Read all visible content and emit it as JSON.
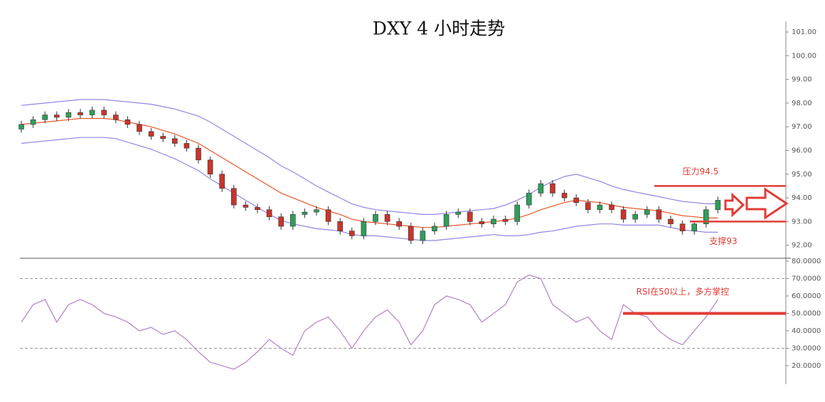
{
  "chart_data": [
    {
      "type": "candlestick",
      "title": "DXY 4 小时走势",
      "open": [
        96.9,
        97.1,
        97.3,
        97.5,
        97.4,
        97.6,
        97.5,
        97.7,
        97.5,
        97.3,
        97.1,
        96.8,
        96.6,
        96.5,
        96.3,
        96.1,
        95.6,
        95.0,
        94.4,
        93.7,
        93.6,
        93.5,
        93.2,
        92.8,
        93.3,
        93.4,
        93.5,
        93.0,
        92.6,
        92.4,
        93.0,
        93.3,
        93.0,
        92.8,
        92.2,
        92.6,
        92.8,
        93.3,
        93.4,
        93.0,
        92.9,
        93.1,
        93.0,
        93.7,
        94.2,
        94.6,
        94.2,
        94.0,
        93.8,
        93.5,
        93.7,
        93.5,
        93.1,
        93.3,
        93.5,
        93.1,
        92.9,
        92.6,
        92.9,
        93.5
      ],
      "high": [
        97.25,
        97.45,
        97.65,
        97.65,
        97.75,
        97.75,
        97.85,
        97.85,
        97.65,
        97.45,
        97.25,
        96.95,
        96.75,
        96.65,
        96.45,
        96.25,
        95.75,
        95.15,
        94.55,
        93.85,
        93.75,
        93.65,
        93.35,
        93.45,
        93.55,
        93.65,
        93.65,
        93.15,
        92.75,
        93.15,
        93.45,
        93.45,
        93.15,
        92.95,
        92.75,
        92.95,
        93.45,
        93.55,
        93.55,
        93.15,
        93.25,
        93.25,
        93.85,
        94.35,
        94.75,
        94.75,
        94.35,
        94.15,
        93.95,
        93.85,
        93.85,
        93.65,
        93.45,
        93.65,
        93.65,
        93.25,
        93.05,
        93.05,
        93.65,
        94.05
      ],
      "low": [
        96.75,
        96.95,
        97.15,
        97.25,
        97.25,
        97.35,
        97.35,
        97.35,
        97.15,
        96.95,
        96.65,
        96.45,
        96.35,
        96.15,
        95.95,
        95.45,
        94.85,
        94.25,
        93.55,
        93.45,
        93.35,
        93.05,
        92.65,
        92.65,
        93.15,
        93.25,
        92.85,
        92.45,
        92.25,
        92.25,
        92.85,
        92.85,
        92.65,
        92.05,
        92.05,
        92.45,
        92.65,
        93.15,
        92.85,
        92.75,
        92.75,
        92.85,
        92.85,
        93.55,
        94.05,
        94.05,
        93.85,
        93.65,
        93.35,
        93.35,
        93.35,
        92.95,
        92.95,
        93.15,
        92.95,
        92.75,
        92.45,
        92.45,
        92.75,
        93.35
      ],
      "close": [
        97.1,
        97.3,
        97.5,
        97.4,
        97.6,
        97.5,
        97.7,
        97.5,
        97.3,
        97.1,
        96.8,
        96.6,
        96.5,
        96.3,
        96.1,
        95.6,
        95.0,
        94.4,
        93.7,
        93.6,
        93.5,
        93.2,
        92.8,
        93.3,
        93.4,
        93.5,
        93.0,
        92.6,
        92.4,
        93.0,
        93.3,
        93.0,
        92.8,
        92.2,
        92.6,
        92.8,
        93.3,
        93.4,
        93.0,
        92.9,
        93.1,
        93.0,
        93.7,
        94.2,
        94.6,
        94.2,
        94.0,
        93.8,
        93.5,
        93.7,
        93.5,
        93.1,
        93.3,
        93.5,
        93.1,
        92.9,
        92.6,
        92.9,
        93.5,
        93.9
      ],
      "up_color": "#2f9e5a",
      "down_color": "#c9352b",
      "bands": [
        {
          "color": "#8f86e6",
          "values": [
            97.9,
            97.95,
            98.0,
            98.05,
            98.1,
            98.15,
            98.15,
            98.15,
            98.1,
            98.05,
            98.0,
            97.95,
            97.85,
            97.75,
            97.6,
            97.45,
            97.2,
            96.9,
            96.6,
            96.3,
            96.0,
            95.7,
            95.35,
            95.1,
            94.8,
            94.5,
            94.25,
            94.0,
            93.75,
            93.6,
            93.5,
            93.45,
            93.4,
            93.35,
            93.3,
            93.3,
            93.35,
            93.4,
            93.45,
            93.5,
            93.55,
            93.7,
            93.9,
            94.15,
            94.45,
            94.7,
            94.9,
            95.0,
            94.85,
            94.7,
            94.5,
            94.35,
            94.25,
            94.15,
            94.05,
            93.95,
            93.85,
            93.8,
            93.75,
            93.75
          ]
        },
        {
          "color": "#e8562a",
          "values": [
            97.1,
            97.15,
            97.2,
            97.25,
            97.3,
            97.35,
            97.35,
            97.35,
            97.3,
            97.2,
            97.1,
            97.0,
            96.85,
            96.7,
            96.5,
            96.3,
            96.0,
            95.7,
            95.4,
            95.1,
            94.8,
            94.5,
            94.2,
            94.0,
            93.8,
            93.6,
            93.45,
            93.3,
            93.1,
            93.0,
            92.95,
            92.9,
            92.85,
            92.8,
            92.75,
            92.75,
            92.8,
            92.85,
            92.9,
            92.95,
            93.0,
            93.05,
            93.15,
            93.3,
            93.5,
            93.65,
            93.8,
            93.9,
            93.85,
            93.8,
            93.7,
            93.6,
            93.55,
            93.5,
            93.45,
            93.35,
            93.25,
            93.2,
            93.15,
            93.15
          ]
        },
        {
          "color": "#8f86e6",
          "values": [
            96.3,
            96.35,
            96.4,
            96.45,
            96.5,
            96.55,
            96.55,
            96.55,
            96.5,
            96.35,
            96.2,
            96.05,
            95.85,
            95.65,
            95.4,
            95.15,
            94.8,
            94.5,
            94.2,
            93.9,
            93.6,
            93.3,
            93.05,
            92.9,
            92.8,
            92.7,
            92.65,
            92.6,
            92.45,
            92.4,
            92.4,
            92.35,
            92.3,
            92.25,
            92.2,
            92.2,
            92.25,
            92.3,
            92.35,
            92.4,
            92.45,
            92.4,
            92.4,
            92.45,
            92.55,
            92.6,
            92.7,
            92.8,
            92.85,
            92.9,
            92.9,
            92.85,
            92.85,
            92.85,
            92.85,
            92.75,
            92.65,
            92.6,
            92.55,
            92.55
          ]
        }
      ],
      "ylim": [
        91.45,
        101.45
      ],
      "yticks": [
        {
          "value": 92,
          "label": "92.00"
        },
        {
          "value": 93,
          "label": "93.00"
        },
        {
          "value": 94,
          "label": "94.00"
        },
        {
          "value": 95,
          "label": "95.00"
        },
        {
          "value": 96,
          "label": "96.00"
        },
        {
          "value": 97,
          "label": "97.00"
        },
        {
          "value": 98,
          "label": "98.00"
        },
        {
          "value": 99,
          "label": "99.00"
        },
        {
          "value": 100,
          "label": "100.00"
        },
        {
          "value": 101,
          "label": "101.00"
        }
      ],
      "annotations": [
        {
          "text": "压力94.5",
          "value": 94.5,
          "color": "#e23b36"
        },
        {
          "text": "支撑93",
          "value": 93,
          "color": "#e23b36"
        }
      ]
    },
    {
      "type": "line",
      "color": "#b68bc9",
      "values": [
        45,
        55,
        58,
        45,
        55,
        58,
        55,
        50,
        48,
        45,
        40,
        42,
        38,
        40,
        35,
        28,
        22,
        20,
        18,
        22,
        28,
        35,
        30,
        26,
        40,
        45,
        48,
        40,
        30,
        40,
        48,
        52,
        45,
        32,
        40,
        55,
        60,
        58,
        55,
        45,
        50,
        55,
        68,
        72,
        70,
        55,
        50,
        45,
        48,
        40,
        35,
        55,
        50,
        48,
        40,
        35,
        32,
        40,
        48,
        58
      ],
      "ylim": [
        9.4,
        81.6
      ],
      "yticks": [
        {
          "value": 20,
          "label": "20.0000"
        },
        {
          "value": 30,
          "label": "30.0000"
        },
        {
          "value": 40,
          "label": "40.0000"
        },
        {
          "value": 50,
          "label": "50.0000"
        },
        {
          "value": 60,
          "label": "60.0000"
        },
        {
          "value": 70,
          "label": "70.0000"
        },
        {
          "value": 80,
          "label": "80.0000"
        }
      ],
      "reference_lines": [
        70,
        30
      ],
      "annotations": [
        {
          "text": "RSI在50以上，多方掌控",
          "value": 50,
          "color": "#e23b36"
        }
      ]
    }
  ]
}
